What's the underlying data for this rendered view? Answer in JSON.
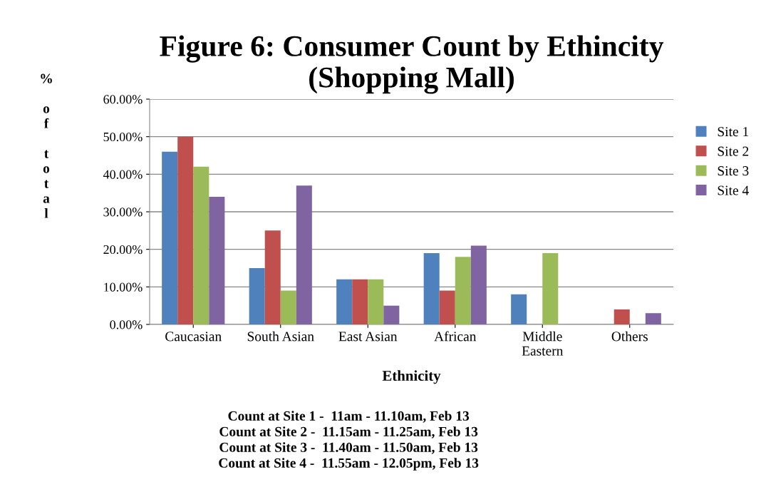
{
  "chart_data": {
    "type": "bar",
    "title": "Figure 6: Consumer Count by Ethincity\n(Shopping Mall)",
    "xlabel": "Ethnicity",
    "ylabel": "% of total",
    "categories": [
      "Caucasian",
      "South Asian",
      "East Asian",
      "African",
      "Middle\nEastern",
      "Others"
    ],
    "series": [
      {
        "name": "Site 1",
        "color": "#4f81bd",
        "values": [
          46,
          15,
          12,
          19,
          8,
          0
        ]
      },
      {
        "name": "Site 2",
        "color": "#c0504d",
        "values": [
          50,
          25,
          12,
          9,
          0,
          4
        ]
      },
      {
        "name": "Site 3",
        "color": "#9bbb59",
        "values": [
          42,
          9,
          12,
          18,
          19,
          0
        ]
      },
      {
        "name": "Site 4",
        "color": "#8064a2",
        "values": [
          34,
          37,
          5,
          21,
          0,
          3
        ]
      }
    ],
    "ylim": [
      0,
      60
    ],
    "yticks": [
      {
        "value": 0,
        "label": "0.00%"
      },
      {
        "value": 10,
        "label": "10.00%"
      },
      {
        "value": 20,
        "label": "20.00%"
      },
      {
        "value": 30,
        "label": "30.00%"
      },
      {
        "value": 40,
        "label": "40.00%"
      },
      {
        "value": 50,
        "label": "50.00%"
      },
      {
        "value": 60,
        "label": "60.00%"
      }
    ],
    "grid": "y",
    "legend": "right",
    "annotations": [
      "Count at Site 1 -  11am - 11.10am, Feb 13",
      "Count at Site 2 -  11.15am - 11.25am, Feb 13",
      "Count at Site 3 -  11.40am - 11.50am, Feb 13",
      "Count at Site 4 -  11.55am - 12.05pm, Feb 13"
    ]
  }
}
